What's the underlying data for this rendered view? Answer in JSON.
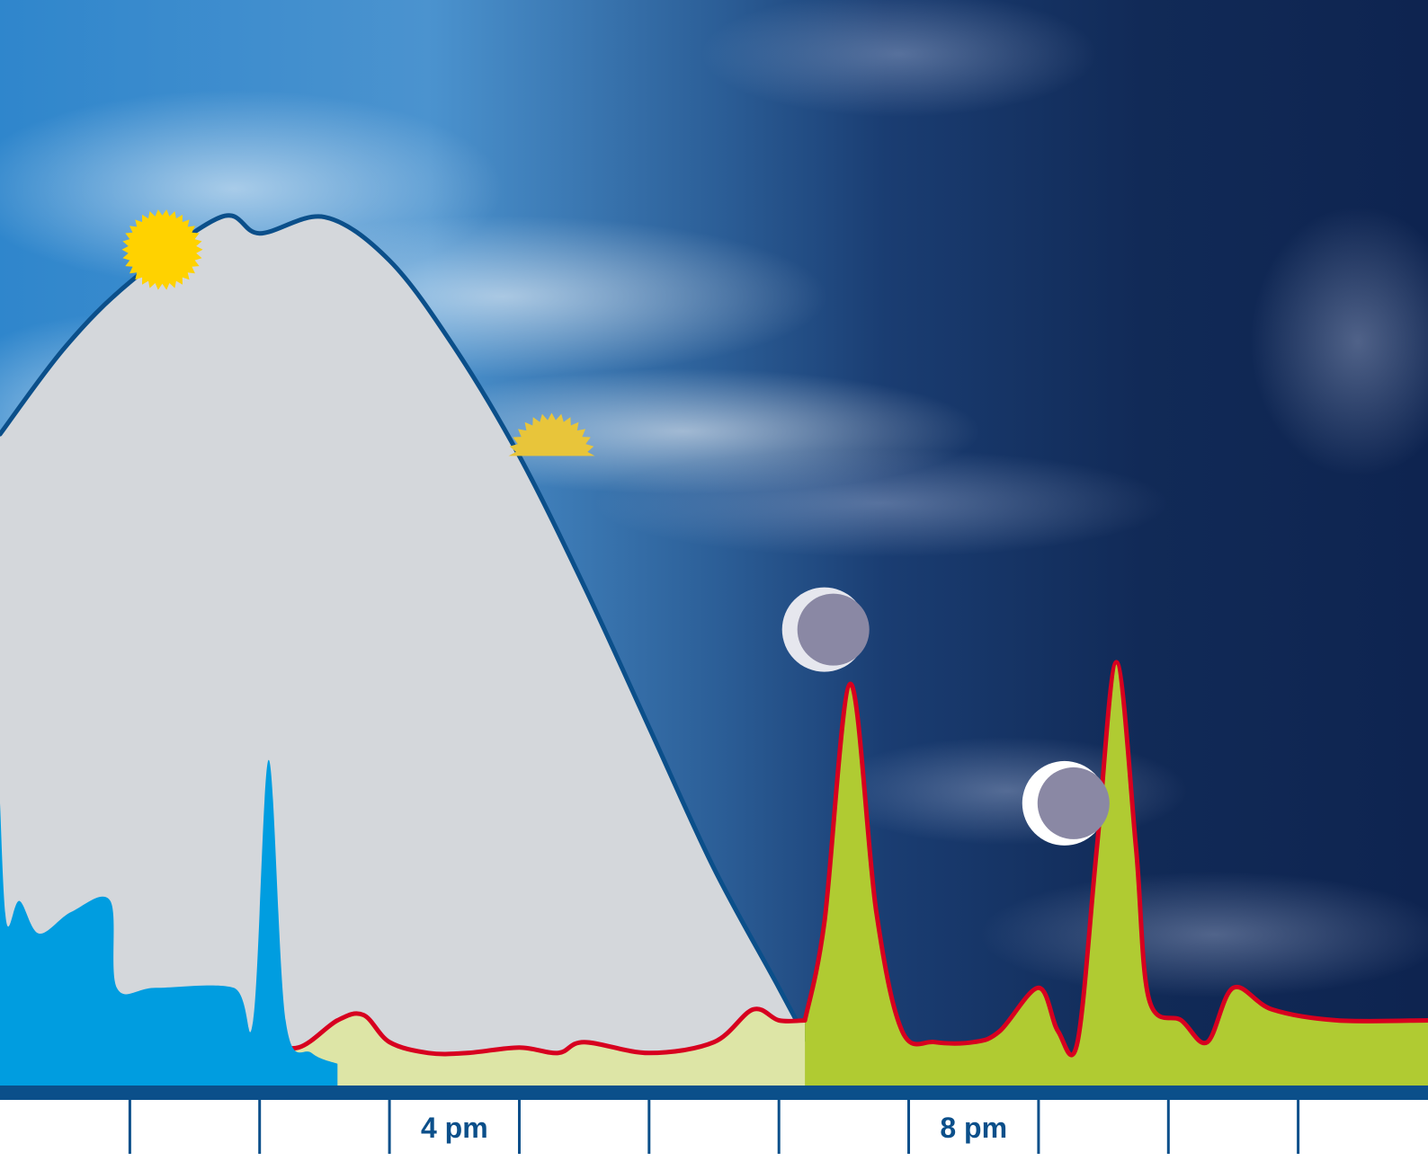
{
  "chart_data": {
    "type": "area",
    "x_axis": {
      "range_hours": [
        13,
        24
      ],
      "tick_hours": [
        14,
        15,
        16,
        17,
        18,
        19,
        20,
        21,
        22,
        23
      ],
      "tick_labels": [
        {
          "hour": 16,
          "text": "4 pm"
        },
        {
          "hour": 20,
          "text": "8 pm"
        }
      ]
    },
    "y_range": [
      0,
      1
    ],
    "grid": false,
    "legend": "none",
    "series": [
      {
        "key": "daylight",
        "color": "#d4d7db",
        "line_color": "#0b4f8a",
        "points": [
          [
            13,
            0.6
          ],
          [
            13.5,
            0.68
          ],
          [
            14,
            0.74
          ],
          [
            14.7,
            0.8
          ],
          [
            15,
            0.785
          ],
          [
            15.5,
            0.8
          ],
          [
            16,
            0.76
          ],
          [
            16.5,
            0.68
          ],
          [
            17,
            0.58
          ],
          [
            17.5,
            0.46
          ],
          [
            18,
            0.33
          ],
          [
            18.5,
            0.2
          ],
          [
            19,
            0.09
          ],
          [
            19.4,
            0.0
          ]
        ]
      },
      {
        "key": "day_activity",
        "color": "#009de0",
        "points": [
          [
            13,
            0.26
          ],
          [
            13.05,
            0.15
          ],
          [
            13.15,
            0.17
          ],
          [
            13.3,
            0.14
          ],
          [
            13.55,
            0.16
          ],
          [
            13.85,
            0.17
          ],
          [
            13.9,
            0.09
          ],
          [
            14.2,
            0.09
          ],
          [
            14.8,
            0.09
          ],
          [
            14.95,
            0.06
          ],
          [
            15.07,
            0.3
          ],
          [
            15.2,
            0.06
          ],
          [
            15.4,
            0.03
          ],
          [
            15.6,
            0.02
          ]
        ]
      },
      {
        "key": "baseline_day",
        "color": "#dde5a6",
        "line_color": "#d7001f",
        "points": [
          [
            13,
            0.06
          ],
          [
            13.3,
            0.03
          ],
          [
            13.6,
            0.06
          ],
          [
            13.8,
            0.04
          ],
          [
            14,
            0.037
          ],
          [
            14.4,
            0.04
          ],
          [
            14.8,
            0.03
          ],
          [
            15,
            0.04
          ],
          [
            15.3,
            0.035
          ],
          [
            15.6,
            0.06
          ],
          [
            15.8,
            0.065
          ],
          [
            16,
            0.04
          ],
          [
            16.3,
            0.03
          ],
          [
            16.6,
            0.03
          ],
          [
            17,
            0.035
          ],
          [
            17.3,
            0.03
          ],
          [
            17.5,
            0.04
          ],
          [
            18,
            0.03
          ],
          [
            18.5,
            0.04
          ],
          [
            18.8,
            0.07
          ],
          [
            19.0,
            0.06
          ],
          [
            19.2,
            0.06
          ]
        ]
      },
      {
        "key": "night_activity",
        "color": "#b0cb32",
        "line_color": "#d7001f",
        "points": [
          [
            19.2,
            0.06
          ],
          [
            19.35,
            0.15
          ],
          [
            19.55,
            0.37
          ],
          [
            19.75,
            0.16
          ],
          [
            19.95,
            0.05
          ],
          [
            20.2,
            0.04
          ],
          [
            20.5,
            0.04
          ],
          [
            20.7,
            0.05
          ],
          [
            21.0,
            0.09
          ],
          [
            21.15,
            0.05
          ],
          [
            21.3,
            0.04
          ],
          [
            21.45,
            0.22
          ],
          [
            21.6,
            0.39
          ],
          [
            21.75,
            0.22
          ],
          [
            21.85,
            0.08
          ],
          [
            22.1,
            0.06
          ],
          [
            22.3,
            0.04
          ],
          [
            22.5,
            0.09
          ],
          [
            22.8,
            0.07
          ],
          [
            23.3,
            0.06
          ],
          [
            24,
            0.06
          ]
        ]
      }
    ],
    "icons": [
      {
        "name": "sun-icon",
        "hour": 14.25,
        "y": 0.77,
        "color": "#ffd200"
      },
      {
        "name": "setting-sun-icon",
        "hour": 17.25,
        "y": 0.58,
        "color": "#e8c53a"
      },
      {
        "name": "crescent-moon-icon",
        "hour": 19.35,
        "y": 0.42,
        "color": "#e6e7ee"
      },
      {
        "name": "crescent-moon-icon",
        "hour": 21.2,
        "y": 0.26,
        "color": "#ffffff"
      }
    ],
    "colors": {
      "sky_day": "#3a8fd0",
      "sky_night": "#0d1f45",
      "axis": "#0b4f8a",
      "tick_label": "#0b4f8a"
    }
  }
}
